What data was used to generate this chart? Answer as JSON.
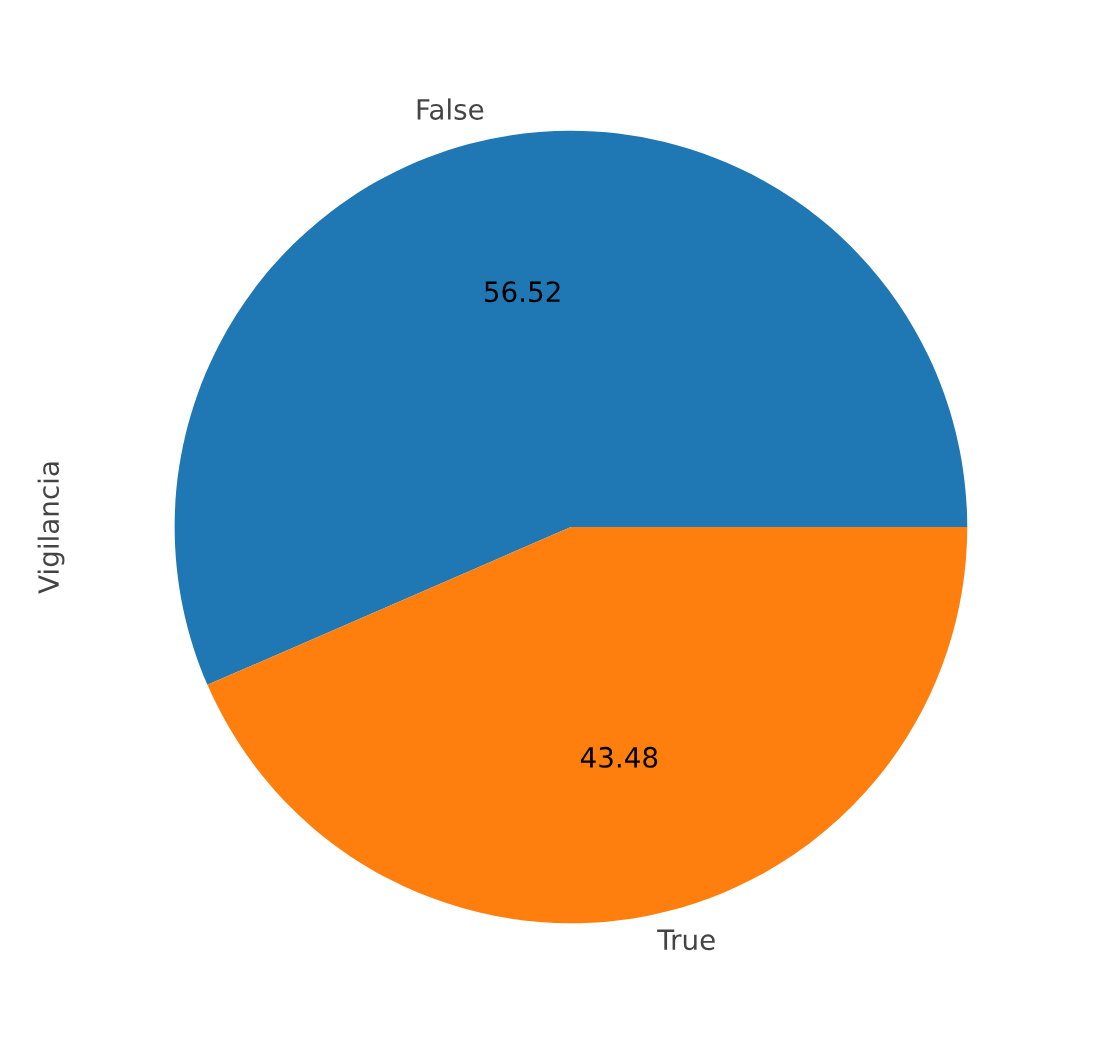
{
  "chart_data": {
    "type": "pie",
    "ylabel": "Vigilancia",
    "categories": [
      "False",
      "True"
    ],
    "values": [
      56.52,
      43.48
    ],
    "colors": [
      "#1f77b4",
      "#ff7f0e"
    ],
    "data_labels": true
  }
}
